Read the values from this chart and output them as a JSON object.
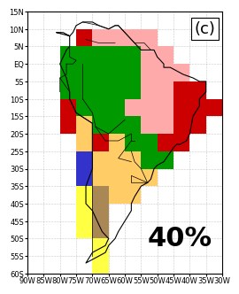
{
  "title": "(c)",
  "label": "40%",
  "lon_min": -90,
  "lon_max": -30,
  "lat_min": -60,
  "lat_max": 15,
  "xtick_locs": [
    -90,
    -85,
    -80,
    -75,
    -70,
    -65,
    -60,
    -55,
    -50,
    -45,
    -40,
    -35,
    -30
  ],
  "xtick_labels": [
    "90W",
    "85W",
    "80W",
    "75W",
    "70W",
    "65W",
    "60W",
    "55W",
    "50W",
    "45W",
    "40W",
    "35W",
    "30W"
  ],
  "ytick_locs": [
    15,
    10,
    5,
    0,
    -5,
    -10,
    -15,
    -20,
    -25,
    -30,
    -35,
    -40,
    -45,
    -50,
    -55,
    -60
  ],
  "ytick_labels": [
    "15N",
    "10N",
    "5N",
    "EQ",
    "5S",
    "10S",
    "15S",
    "20S",
    "25S",
    "30S",
    "35S",
    "40S",
    "45S",
    "50S",
    "55S",
    "60S"
  ],
  "colors": {
    "TF": "#009900",
    "PK": "#ffaaaa",
    "CA": "#cc0000",
    "SA": "#ffcc66",
    "DF": "#aa8855",
    "GR": "#ffff44",
    "PA": "#9966bb",
    "WA": "#3333cc",
    "BR": "#cc8844",
    "GN": "#66bb66",
    "NL": null
  },
  "grid": [
    [
      "NL",
      "NL",
      "NL",
      "NL",
      "NL",
      "NL",
      "NL",
      "NL",
      "NL",
      "NL",
      "NL",
      "NL",
      "NL"
    ],
    [
      "NL",
      "NL",
      "NL",
      "CA",
      "PK",
      "PK",
      "PK",
      "PK",
      "NL",
      "NL",
      "NL",
      "NL",
      "NL"
    ],
    [
      "NL",
      "NL",
      "TF",
      "TF",
      "TF",
      "TF",
      "TF",
      "PK",
      "PK",
      "NL",
      "NL",
      "NL",
      "NL"
    ],
    [
      "NL",
      "NL",
      "TF",
      "TF",
      "TF",
      "TF",
      "TF",
      "PK",
      "PK",
      "PK",
      "NL",
      "NL",
      "NL"
    ],
    [
      "NL",
      "NL",
      "TF",
      "TF",
      "TF",
      "TF",
      "TF",
      "PK",
      "PK",
      "CA",
      "CA",
      "NL",
      "NL"
    ],
    [
      "NL",
      "NL",
      "CA",
      "TF",
      "TF",
      "TF",
      "PK",
      "PK",
      "PK",
      "CA",
      "CA",
      "CA",
      "NL"
    ],
    [
      "NL",
      "NL",
      "CA",
      "SA",
      "TF",
      "TF",
      "TF",
      "PK",
      "PK",
      "CA",
      "CA",
      "NL",
      "NL"
    ],
    [
      "NL",
      "NL",
      "NL",
      "SA",
      "CA",
      "SA",
      "TF",
      "TF",
      "CA",
      "CA",
      "NL",
      "NL",
      "NL"
    ],
    [
      "NL",
      "NL",
      "NL",
      "WA",
      "SA",
      "SA",
      "SA",
      "TF",
      "TF",
      "NL",
      "NL",
      "NL",
      "NL"
    ],
    [
      "NL",
      "NL",
      "NL",
      "WA",
      "SA",
      "SA",
      "SA",
      "SA",
      "NL",
      "NL",
      "NL",
      "NL",
      "NL"
    ],
    [
      "NL",
      "NL",
      "NL",
      "GR",
      "DF",
      "SA",
      "SA",
      "NL",
      "NL",
      "NL",
      "NL",
      "NL",
      "NL"
    ],
    [
      "NL",
      "NL",
      "NL",
      "GR",
      "DF",
      "NL",
      "NL",
      "NL",
      "NL",
      "NL",
      "NL",
      "NL",
      "NL"
    ],
    [
      "NL",
      "NL",
      "NL",
      "GR",
      "DF",
      "NL",
      "NL",
      "NL",
      "NL",
      "NL",
      "NL",
      "NL",
      "NL"
    ],
    [
      "NL",
      "NL",
      "NL",
      "NL",
      "GR",
      "NL",
      "NL",
      "NL",
      "NL",
      "NL",
      "NL",
      "NL",
      "NL"
    ],
    [
      "NL",
      "NL",
      "NL",
      "NL",
      "GR",
      "NL",
      "NL",
      "NL",
      "NL",
      "NL",
      "NL",
      "NL",
      "NL"
    ],
    [
      "NL",
      "NL",
      "NL",
      "NL",
      "NL",
      "NL",
      "NL",
      "NL",
      "NL",
      "NL",
      "NL",
      "NL",
      "NL"
    ]
  ],
  "title_fs": 13,
  "label_fs": 22,
  "tick_fs": 6
}
